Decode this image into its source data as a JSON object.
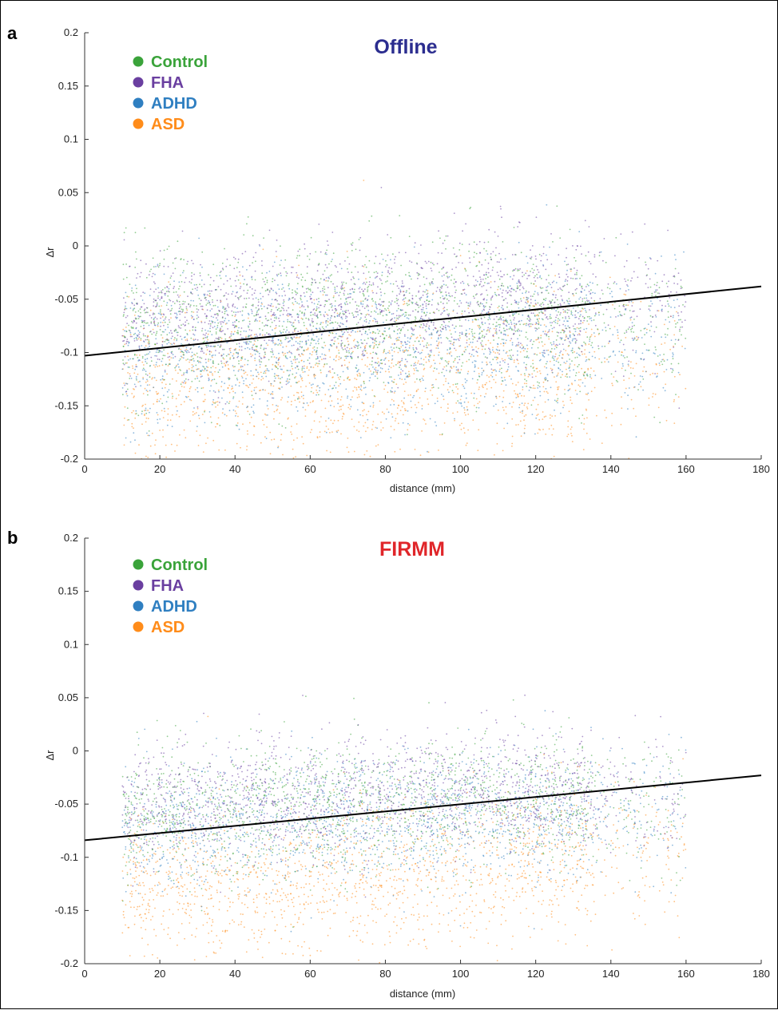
{
  "chart_data": [
    {
      "type": "scatter",
      "panel_label": "a",
      "title": "Offline",
      "title_color": "#2b2d8f",
      "xlabel": "distance (mm)",
      "ylabel": "Δr",
      "xlim": [
        0,
        180
      ],
      "ylim": [
        -0.2,
        0.2
      ],
      "x_ticks": [
        0,
        20,
        40,
        60,
        80,
        100,
        120,
        140,
        160,
        180
      ],
      "y_ticks": [
        -0.2,
        -0.15,
        -0.1,
        -0.05,
        0,
        0.05,
        0.1,
        0.15,
        0.2
      ],
      "x_tick_labels": [
        "0",
        "20",
        "40",
        "60",
        "80",
        "100",
        "120",
        "140",
        "160",
        "180"
      ],
      "y_tick_labels": [
        "-0.2",
        "-0.15",
        "-0.1",
        "-0.05",
        "0",
        "0.05",
        "0.1",
        "0.15",
        "0.2"
      ],
      "grid": false,
      "legend": "top-left",
      "series": [
        {
          "name": "Control",
          "color": "#3aa33a",
          "center_y": [
            -0.08,
            -0.065,
            -0.065,
            -0.075
          ],
          "spread": 0.035
        },
        {
          "name": "FHA",
          "color": "#6a3fa0",
          "center_y": [
            -0.07,
            -0.06,
            -0.05,
            -0.055
          ],
          "spread": 0.03
        },
        {
          "name": "ADHD",
          "color": "#2f7fc1",
          "center_y": [
            -0.1,
            -0.095,
            -0.09,
            -0.08
          ],
          "spread": 0.035
        },
        {
          "name": "ASD",
          "color": "#ff8c1a",
          "center_y": [
            -0.13,
            -0.13,
            -0.125,
            -0.1
          ],
          "spread": 0.04
        }
      ],
      "x_range_of_points": [
        10,
        160
      ],
      "fit_line": {
        "x": [
          0,
          180
        ],
        "y": [
          -0.103,
          -0.038
        ],
        "color": "#000000"
      }
    },
    {
      "type": "scatter",
      "panel_label": "b",
      "title": "FIRMM",
      "title_color": "#e0262a",
      "xlabel": "distance (mm)",
      "ylabel": "Δr",
      "xlim": [
        0,
        180
      ],
      "ylim": [
        -0.2,
        0.2
      ],
      "x_ticks": [
        0,
        20,
        40,
        60,
        80,
        100,
        120,
        140,
        160,
        180
      ],
      "y_ticks": [
        -0.2,
        -0.15,
        -0.1,
        -0.05,
        0,
        0.05,
        0.1,
        0.15,
        0.2
      ],
      "x_tick_labels": [
        "0",
        "20",
        "40",
        "60",
        "80",
        "100",
        "120",
        "140",
        "160",
        "180"
      ],
      "y_tick_labels": [
        "-0.2",
        "-0.15",
        "-0.1",
        "-0.05",
        "0",
        "0.05",
        "0.1",
        "0.15",
        "0.2"
      ],
      "grid": false,
      "legend": "top-left",
      "series": [
        {
          "name": "Control",
          "color": "#3aa33a",
          "center_y": [
            -0.06,
            -0.05,
            -0.045,
            -0.05
          ],
          "spread": 0.03
        },
        {
          "name": "FHA",
          "color": "#6a3fa0",
          "center_y": [
            -0.05,
            -0.045,
            -0.035,
            -0.04
          ],
          "spread": 0.028
        },
        {
          "name": "ADHD",
          "color": "#2f7fc1",
          "center_y": [
            -0.075,
            -0.065,
            -0.06,
            -0.055
          ],
          "spread": 0.03
        },
        {
          "name": "ASD",
          "color": "#ff8c1a",
          "center_y": [
            -0.13,
            -0.125,
            -0.11,
            -0.09
          ],
          "spread": 0.035
        }
      ],
      "x_range_of_points": [
        10,
        160
      ],
      "fit_line": {
        "x": [
          0,
          180
        ],
        "y": [
          -0.084,
          -0.023
        ],
        "color": "#000000"
      }
    }
  ]
}
